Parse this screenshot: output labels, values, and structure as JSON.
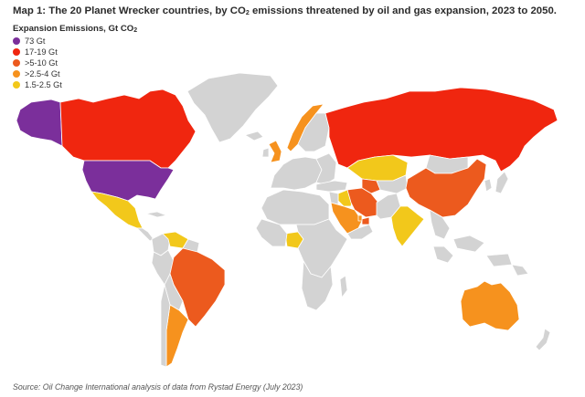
{
  "title": {
    "prefix": "Map 1: The 20 Planet Wrecker countries, by CO",
    "subscript": "2",
    "suffix": " emissions threatened by oil and gas expansion, 2023 to 2050."
  },
  "legend": {
    "heading_prefix": "Expansion Emissions, Gt CO",
    "heading_subscript": "2",
    "items": [
      {
        "label": "73 Gt",
        "color": "#7b2f9b"
      },
      {
        "label": "17-19 Gt",
        "color": "#f0260f"
      },
      {
        "label": ">5-10 Gt",
        "color": "#ec5a1e"
      },
      {
        "label": ">2.5-4 Gt",
        "color": "#f6921e"
      },
      {
        "label": "1.5-2.5 Gt",
        "color": "#f2c81b"
      }
    ]
  },
  "map_colors": {
    "no_data": "#d3d3d3",
    "border": "#ffffff"
  },
  "source": "Source: Oil Change International analysis of data from Rystad Energy (July 2023)"
}
